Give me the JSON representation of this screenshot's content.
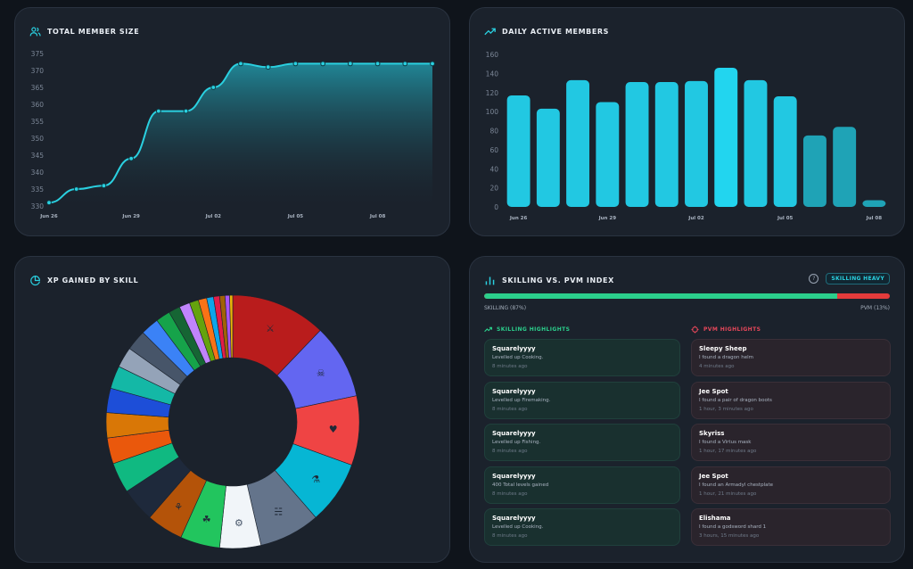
{
  "member_card": {
    "title": "TOTAL MEMBER SIZE",
    "icon": "users-icon",
    "chart_data": {
      "type": "area",
      "x": [
        "Jun 26",
        "Jun 27",
        "Jun 28",
        "Jun 29",
        "Jun 30",
        "Jul 01",
        "Jul 02",
        "Jul 03",
        "Jul 04",
        "Jul 05",
        "Jul 06",
        "Jul 07",
        "Jul 08",
        "Jul 09",
        "Jul 10"
      ],
      "values": [
        331,
        335,
        336,
        344,
        358,
        358,
        365,
        372,
        371,
        372,
        372,
        372,
        372,
        372,
        372
      ],
      "y_ticks": [
        330,
        335,
        340,
        345,
        350,
        355,
        360,
        365,
        370,
        375
      ],
      "x_tick_labels": [
        "Jun 26",
        "Jun 29",
        "Jul 02",
        "Jul 05",
        "Jul 08"
      ],
      "ylim": [
        330,
        375
      ],
      "color": "#2ad0e0"
    }
  },
  "daily_card": {
    "title": "DAILY ACTIVE MEMBERS",
    "icon": "trending-up-icon",
    "chart_data": {
      "type": "bar",
      "categories": [
        "Jun 26",
        "Jun 27",
        "Jun 28",
        "Jun 29",
        "Jun 30",
        "Jul 01",
        "Jul 02",
        "Jul 03",
        "Jul 04",
        "Jul 05",
        "Jul 06",
        "Jul 07",
        "Jul 08"
      ],
      "values": [
        117,
        103,
        133,
        110,
        131,
        131,
        132,
        146,
        133,
        116,
        75,
        84,
        7
      ],
      "y_ticks": [
        0,
        20,
        40,
        60,
        80,
        100,
        120,
        140,
        160
      ],
      "x_tick_labels": [
        "Jun 26",
        "Jun 29",
        "Jul 02",
        "Jul 05",
        "Jul 08"
      ],
      "ylim": [
        0,
        160
      ],
      "color": "#22c8e2"
    }
  },
  "xp_card": {
    "title": "XP GAINED BY SKILL",
    "icon": "pie-chart-icon",
    "chart_data": {
      "type": "pie",
      "slices": [
        {
          "skill_icon": "sword-icon",
          "value": 12.5,
          "color": "#b91c1c"
        },
        {
          "skill_icon": "skull-icon",
          "value": 9.8,
          "color": "#6366f1"
        },
        {
          "skill_icon": "heart-icon",
          "value": 9.1,
          "color": "#ef4444"
        },
        {
          "skill_icon": "potion-icon",
          "value": 8.3,
          "color": "#06b6d4"
        },
        {
          "skill_icon": "fish-icon",
          "value": 8.0,
          "color": "#64748b"
        },
        {
          "skill_icon": "gear-icon",
          "value": 5.4,
          "color": "#f1f5f9"
        },
        {
          "skill_icon": "cactus-icon",
          "value": 5.2,
          "color": "#22c55e"
        },
        {
          "skill_icon": "bag-icon",
          "value": 4.8,
          "color": "#b45309"
        },
        {
          "value": 4.5,
          "color": "#1e293b"
        },
        {
          "value": 4.0,
          "color": "#10b981"
        },
        {
          "value": 3.4,
          "color": "#ea580c"
        },
        {
          "value": 3.3,
          "color": "#d97706"
        },
        {
          "value": 3.2,
          "color": "#1d4ed8"
        },
        {
          "value": 3.0,
          "color": "#14b8a6"
        },
        {
          "value": 2.7,
          "color": "#94a3b8"
        },
        {
          "value": 2.7,
          "color": "#475569"
        },
        {
          "value": 2.4,
          "color": "#3b82f6"
        },
        {
          "value": 1.9,
          "color": "#16a34a"
        },
        {
          "value": 1.5,
          "color": "#166534"
        },
        {
          "value": 1.4,
          "color": "#c084fc"
        },
        {
          "value": 1.2,
          "color": "#65a30d"
        },
        {
          "value": 1.1,
          "color": "#f97316"
        },
        {
          "value": 0.9,
          "color": "#0ea5e9"
        },
        {
          "value": 0.8,
          "color": "#e11d48"
        },
        {
          "value": 0.7,
          "color": "#a16207"
        },
        {
          "value": 0.6,
          "color": "#a855f7"
        },
        {
          "value": 0.4,
          "color": "#eab308"
        }
      ]
    }
  },
  "skill_card": {
    "title": "SKILLING VS. PVM INDEX",
    "icon": "bar-chart-icon",
    "help_icon": "question-icon",
    "badge": "SKILLING HEAVY",
    "skilling_percent": 87,
    "skilling_label": "SKILLING (87%)",
    "pvm_label": "PVM (13%)",
    "colors": {
      "skilling": "#2bcf8c",
      "pvm": "#e33b3b",
      "accent": "#2ad0e0"
    },
    "skilling_header": "SKILLING HIGHLIGHTS",
    "pvm_header": "PVM HIGHLIGHTS",
    "skilling_items": [
      {
        "name": "Squarelyyyy",
        "desc": "Levelled up Cooking.",
        "time": "8 minutes ago"
      },
      {
        "name": "Squarelyyyy",
        "desc": "Levelled up Firemaking.",
        "time": "8 minutes ago"
      },
      {
        "name": "Squarelyyyy",
        "desc": "Levelled up Fishing.",
        "time": "8 minutes ago"
      },
      {
        "name": "Squarelyyyy",
        "desc": "400 Total levels gained",
        "time": "8 minutes ago"
      },
      {
        "name": "Squarelyyyy",
        "desc": "Levelled up Cooking.",
        "time": "8 minutes ago"
      }
    ],
    "pvm_items": [
      {
        "name": "Sleepy Sheep",
        "desc": "I found a dragon helm",
        "time": "4 minutes ago"
      },
      {
        "name": "Jee Spot",
        "desc": "I found a pair of dragon boots",
        "time": "1 hour, 3 minutes ago"
      },
      {
        "name": "Skyriss",
        "desc": "I found a Virtus mask",
        "time": "1 hour, 17 minutes ago"
      },
      {
        "name": "Jee Spot",
        "desc": "I found an Armadyl chestplate",
        "time": "1 hour, 21 minutes ago"
      },
      {
        "name": "Elishama",
        "desc": "I found a godsword shard 1",
        "time": "3 hours, 15 minutes ago"
      }
    ]
  }
}
